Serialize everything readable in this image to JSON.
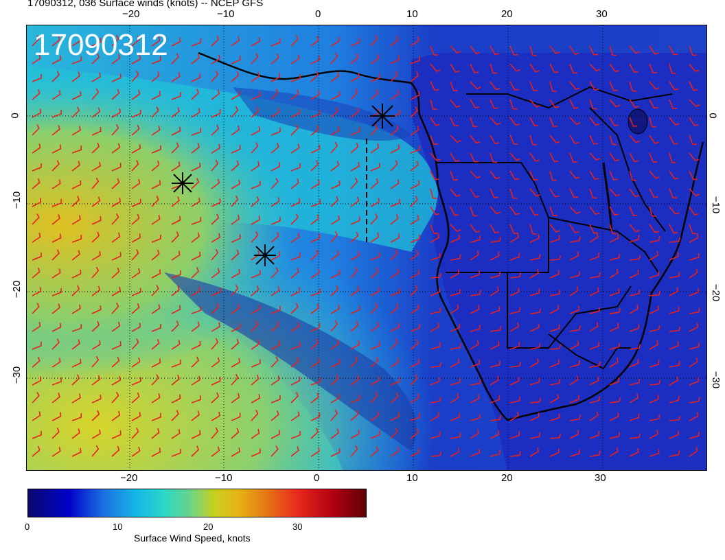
{
  "title": "17090312, 036 Surface winds (knots) -- NCEP GFS",
  "stamp": "17090312",
  "axes": {
    "top_lon": [
      "−20",
      "−10",
      "0",
      "10",
      "20",
      "30"
    ],
    "bottom_lon": [
      "−20",
      "−10",
      "0",
      "10",
      "20",
      "30"
    ],
    "left_lat": [
      "0",
      "−10",
      "−20",
      "−30"
    ],
    "right_lat": [
      "0",
      "−10",
      "−20",
      "−30"
    ]
  },
  "colorbar": {
    "ticks": [
      "0",
      "10",
      "20",
      "30"
    ],
    "label": "Surface Wind Speed, knots"
  },
  "colors": {
    "barb": "#e8201c",
    "coast": "#000000",
    "ocean_low": "#1a3fd0",
    "ocean_mid": "#18b4e0",
    "ocean_high": "#c8d428"
  },
  "markers": [
    "asterisk-marker",
    "asterisk-marker",
    "asterisk-marker"
  ]
}
